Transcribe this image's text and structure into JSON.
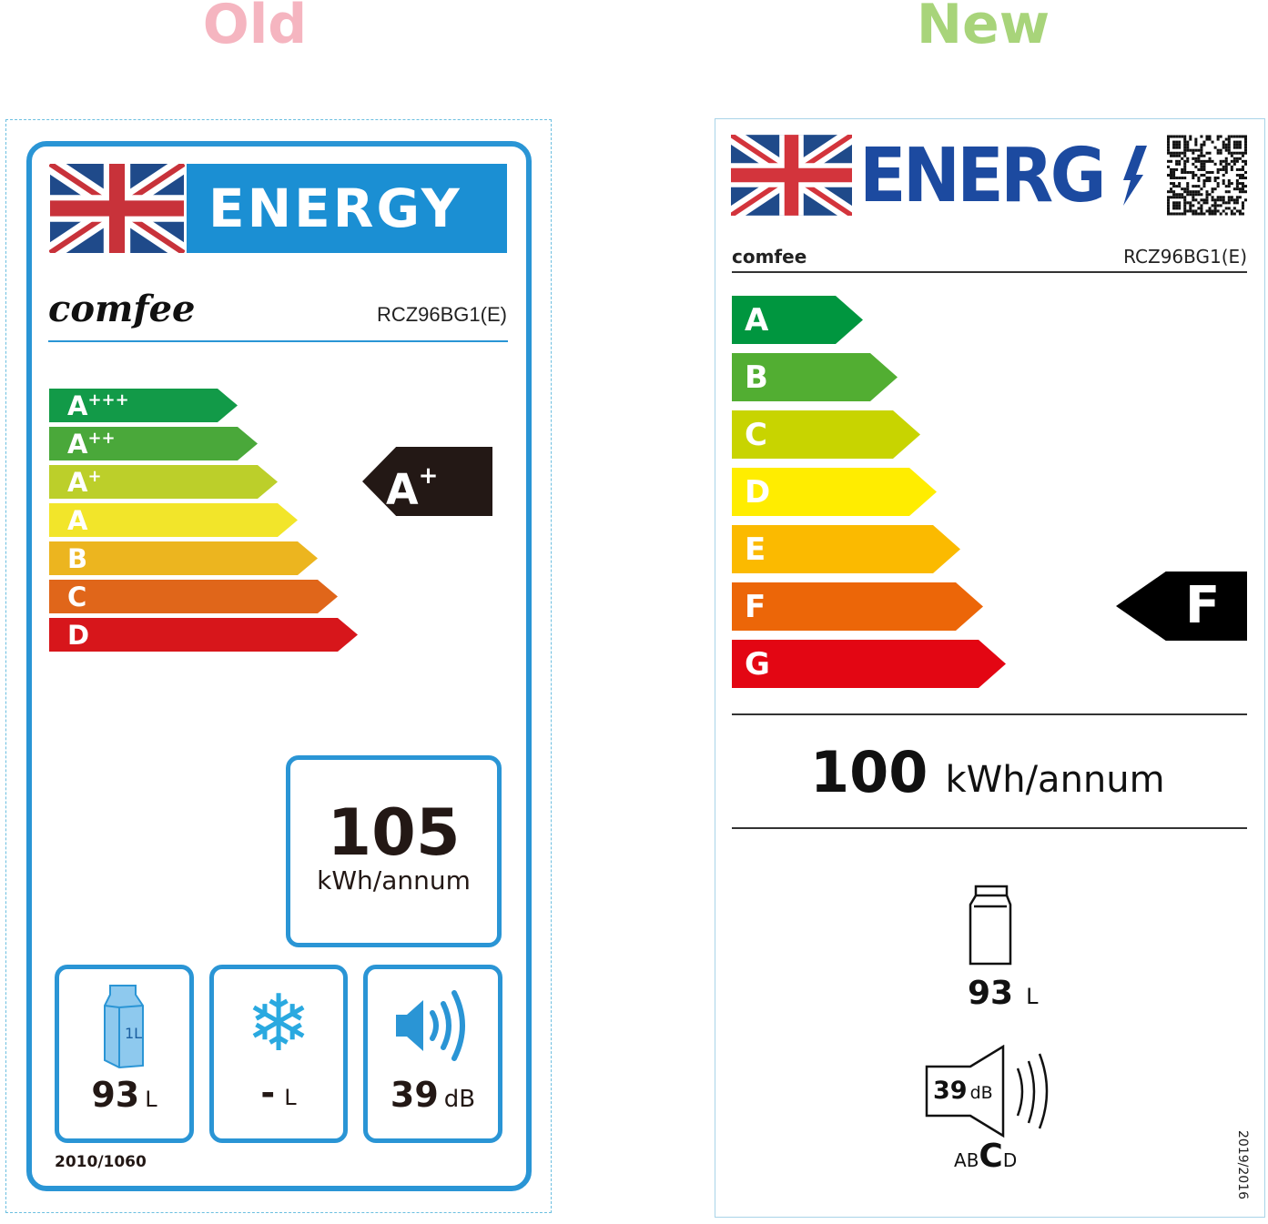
{
  "headings": {
    "old": "Old",
    "new": "New",
    "old_color": "#f5b5c0",
    "new_color": "#a8d47a"
  },
  "old_label": {
    "energy_title": "ENERGY",
    "brand_logo": "comfee",
    "model": "RCZ96BG1(E)",
    "classes": [
      {
        "base": "A",
        "sup": "+++",
        "color": "#129a48"
      },
      {
        "base": "A",
        "sup": "++",
        "color": "#4aa83a"
      },
      {
        "base": "A",
        "sup": "+",
        "color": "#bccf2a"
      },
      {
        "base": "A",
        "sup": "",
        "color": "#f2e52a"
      },
      {
        "base": "B",
        "sup": "",
        "color": "#ecb51f"
      },
      {
        "base": "C",
        "sup": "",
        "color": "#e0661a"
      },
      {
        "base": "D",
        "sup": "",
        "color": "#d7161b"
      }
    ],
    "rating": {
      "base": "A",
      "sup": "+"
    },
    "consumption": "105",
    "consumption_unit": "kWh/annum",
    "fresh_volume": "93",
    "fresh_unit": "L",
    "frozen_volume": "-",
    "frozen_unit": "L",
    "noise": "39",
    "noise_unit": "dB",
    "carton_text": "1L",
    "regulation": "2010/1060",
    "accent": "#2a95d5"
  },
  "new_label": {
    "energy_title": "ENERG",
    "brand": "comfee",
    "model": "RCZ96BG1(E)",
    "classes": [
      {
        "label": "A",
        "color": "#00963f"
      },
      {
        "label": "B",
        "color": "#52ae32"
      },
      {
        "label": "C",
        "color": "#c8d400"
      },
      {
        "label": "D",
        "color": "#ffed00"
      },
      {
        "label": "E",
        "color": "#fbba00"
      },
      {
        "label": "F",
        "color": "#ec6608"
      },
      {
        "label": "G",
        "color": "#e30613"
      }
    ],
    "rating": "F",
    "consumption": "100",
    "consumption_unit": "kWh/annum",
    "volume": "93",
    "volume_unit": "L",
    "noise": "39",
    "noise_unit": "dB",
    "noise_classes": [
      "A",
      "B",
      "C",
      "D"
    ],
    "noise_class_selected": "C",
    "regulation": "2019/2016",
    "accent": "#1c4aa0"
  }
}
